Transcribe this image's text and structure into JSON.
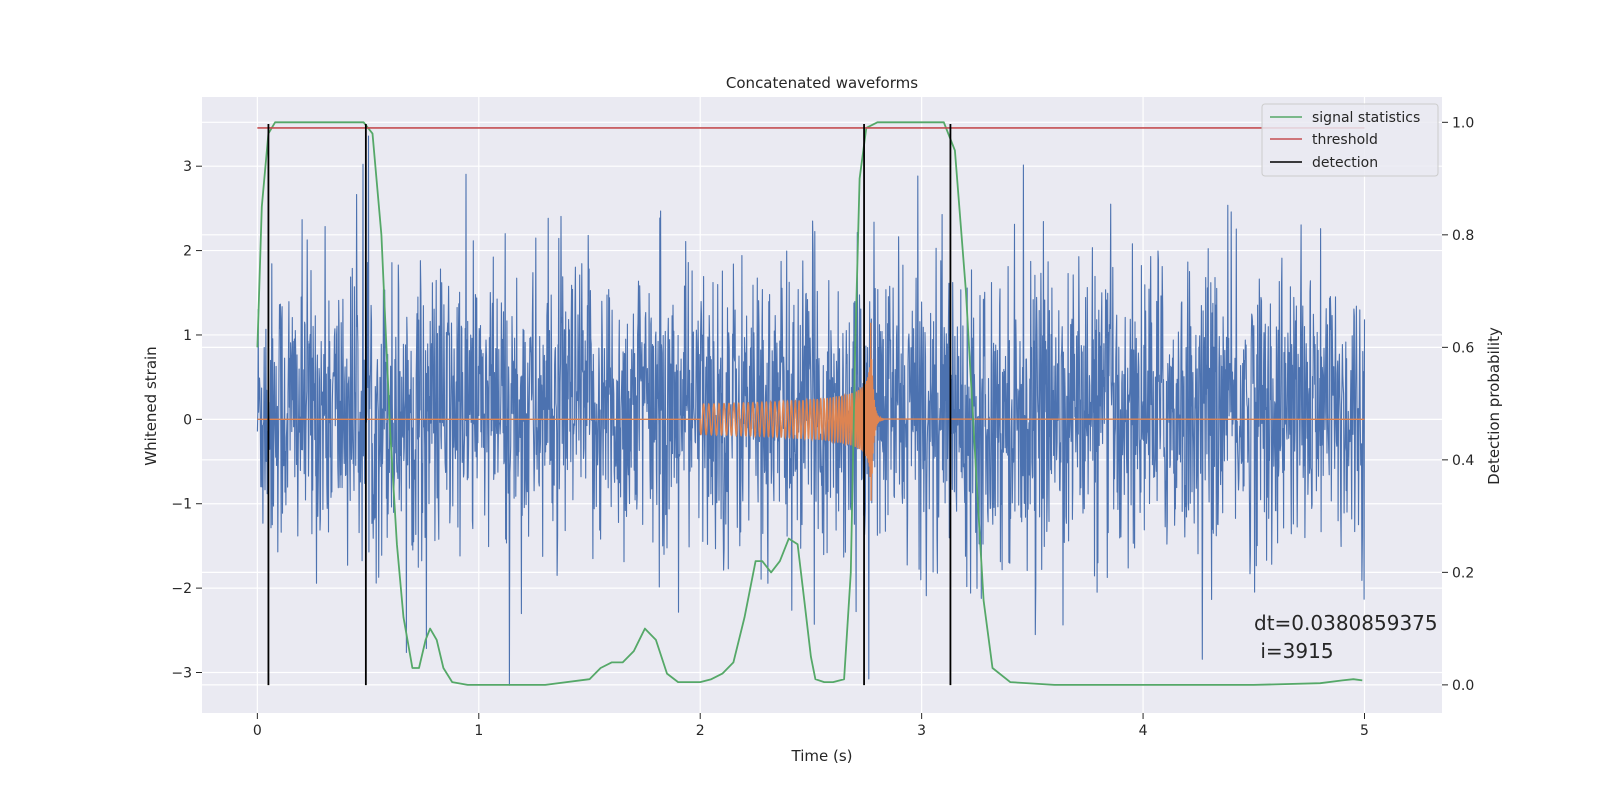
{
  "chart_data": {
    "type": "line",
    "title": "Concatenated waveforms",
    "xlabel": "Time (s)",
    "ylabel": "Whitened strain",
    "ylabel_right": "Detection probability",
    "xlim": [
      -0.25,
      5.35
    ],
    "ylim": [
      -3.48,
      3.82
    ],
    "ylim_right": [
      -0.05,
      1.045
    ],
    "xticks": [
      0,
      1,
      2,
      3,
      4,
      5
    ],
    "xtick_labels": [
      "0",
      "1",
      "2",
      "3",
      "4",
      "5"
    ],
    "yticks": [
      -3,
      -2,
      -1,
      0,
      1,
      2,
      3
    ],
    "ytick_labels": [
      "−3",
      "−2",
      "−1",
      "0",
      "1",
      "2",
      "3"
    ],
    "yticks_right": [
      0.0,
      0.2,
      0.4,
      0.6,
      0.8,
      1.0
    ],
    "ytick_labels_right": [
      "0.0",
      "0.2",
      "0.4",
      "0.6",
      "0.8",
      "1.0"
    ],
    "grid": true,
    "legend_position": "top-right",
    "colors": {
      "background": "#eaeaf2",
      "strain": "#4c72b0",
      "injection": "#dd8452",
      "signal_statistics": "#55a868",
      "threshold": "#c44e52",
      "detection": "#000000"
    },
    "series": [
      {
        "name": "signal statistics",
        "axis": "right",
        "x": [
          0.0,
          0.02,
          0.05,
          0.08,
          0.12,
          0.2,
          0.3,
          0.4,
          0.48,
          0.52,
          0.56,
          0.6,
          0.63,
          0.66,
          0.7,
          0.73,
          0.76,
          0.78,
          0.81,
          0.84,
          0.88,
          0.95,
          1.1,
          1.3,
          1.5,
          1.55,
          1.6,
          1.65,
          1.7,
          1.75,
          1.8,
          1.85,
          1.9,
          2.0,
          2.05,
          2.1,
          2.15,
          2.2,
          2.25,
          2.28,
          2.32,
          2.36,
          2.4,
          2.44,
          2.47,
          2.5,
          2.52,
          2.56,
          2.6,
          2.65,
          2.68,
          2.7,
          2.72,
          2.75,
          2.8,
          3.0,
          3.1,
          3.15,
          3.2,
          3.25,
          3.28,
          3.32,
          3.4,
          3.6,
          4.0,
          4.5,
          4.8,
          4.9,
          4.95,
          4.99
        ],
        "y": [
          0.6,
          0.85,
          0.98,
          1.0,
          1.0,
          1.0,
          1.0,
          1.0,
          1.0,
          0.98,
          0.8,
          0.45,
          0.25,
          0.12,
          0.03,
          0.03,
          0.08,
          0.1,
          0.08,
          0.03,
          0.005,
          0.0,
          0.0,
          0.0,
          0.01,
          0.03,
          0.04,
          0.04,
          0.06,
          0.1,
          0.08,
          0.02,
          0.005,
          0.005,
          0.01,
          0.02,
          0.04,
          0.12,
          0.22,
          0.22,
          0.2,
          0.22,
          0.26,
          0.25,
          0.15,
          0.05,
          0.01,
          0.005,
          0.005,
          0.01,
          0.2,
          0.6,
          0.9,
          0.99,
          1.0,
          1.0,
          1.0,
          0.95,
          0.7,
          0.35,
          0.15,
          0.03,
          0.005,
          0.0,
          0.0,
          0.0,
          0.003,
          0.008,
          0.01,
          0.008
        ]
      },
      {
        "name": "threshold",
        "axis": "right",
        "x": [
          0.0,
          5.0
        ],
        "y": [
          0.99,
          0.99
        ]
      },
      {
        "name": "detection",
        "axis": "left",
        "x": [
          0.05,
          0.49,
          2.74,
          3.13
        ],
        "y_range": [
          -3.15,
          3.5
        ]
      },
      {
        "name": "",
        "axis": "left",
        "kind": "whitened-strain-noise",
        "x_range": [
          0,
          5
        ],
        "envelope": [
          -2.0,
          2.3
        ],
        "dense_band": [
          -0.5,
          0.8
        ],
        "extreme": [
          -3.15,
          3.5
        ]
      },
      {
        "name": "",
        "axis": "left",
        "kind": "injected-chirp",
        "x_start": 2.0,
        "x_merger": 2.77,
        "amplitude_start": 0.18,
        "amplitude_peak": 1.18
      }
    ],
    "annotations": [
      {
        "line1": "dt=0.0380859375",
        "line2": " i=3915"
      }
    ]
  }
}
